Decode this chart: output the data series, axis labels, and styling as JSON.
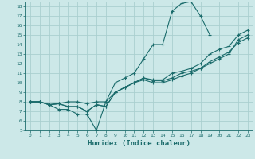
{
  "title": "",
  "xlabel": "Humidex (Indice chaleur)",
  "xlim": [
    -0.5,
    23.5
  ],
  "ylim": [
    5,
    18.5
  ],
  "xticks": [
    0,
    1,
    2,
    3,
    4,
    5,
    6,
    7,
    8,
    9,
    10,
    11,
    12,
    13,
    14,
    15,
    16,
    17,
    18,
    19,
    20,
    21,
    22,
    23
  ],
  "yticks": [
    5,
    6,
    7,
    8,
    9,
    10,
    11,
    12,
    13,
    14,
    15,
    16,
    17,
    18
  ],
  "bg_color": "#cce8e8",
  "grid_color": "#aacfcf",
  "line_color": "#1a6b6b",
  "lines": [
    {
      "x": [
        0,
        1,
        2,
        3,
        4,
        5,
        6,
        7,
        8,
        9,
        10,
        11,
        12,
        13,
        14,
        15,
        16,
        17,
        18,
        19
      ],
      "y": [
        8,
        8,
        7.7,
        7.2,
        7.2,
        6.7,
        6.7,
        5.0,
        8.0,
        10.0,
        10.5,
        11.0,
        12.5,
        14.0,
        14.0,
        17.5,
        18.3,
        18.5,
        17.0,
        15.0
      ]
    },
    {
      "x": [
        0,
        1,
        2,
        3,
        4,
        5,
        6,
        7,
        8,
        9,
        10,
        11,
        12,
        13,
        14,
        15,
        16,
        17,
        18,
        19,
        20,
        21,
        22,
        23
      ],
      "y": [
        8,
        8,
        7.7,
        7.8,
        7.5,
        7.5,
        7.0,
        7.7,
        7.5,
        9.0,
        9.5,
        10.0,
        10.5,
        10.2,
        10.2,
        10.5,
        11.0,
        11.2,
        11.5,
        12.2,
        12.7,
        13.2,
        14.2,
        14.7
      ]
    },
    {
      "x": [
        0,
        1,
        2,
        3,
        4,
        5,
        6,
        7,
        8,
        9,
        10,
        11,
        12,
        13,
        14,
        15,
        16,
        17,
        18,
        19,
        20,
        21,
        22,
        23
      ],
      "y": [
        8,
        8,
        7.7,
        7.8,
        7.5,
        7.5,
        7.0,
        7.7,
        7.5,
        9.0,
        9.5,
        10.0,
        10.3,
        10.0,
        10.0,
        10.3,
        10.7,
        11.0,
        11.5,
        12.0,
        12.5,
        13.0,
        14.5,
        15.0
      ]
    },
    {
      "x": [
        0,
        1,
        2,
        3,
        4,
        5,
        6,
        7,
        8,
        9,
        10,
        11,
        12,
        13,
        14,
        15,
        16,
        17,
        18,
        19,
        20,
        21,
        22,
        23
      ],
      "y": [
        8,
        8,
        7.7,
        7.8,
        8.0,
        8.0,
        7.8,
        8.0,
        8.0,
        9.0,
        9.5,
        10.0,
        10.5,
        10.3,
        10.3,
        11.0,
        11.2,
        11.5,
        12.0,
        13.0,
        13.5,
        13.8,
        15.0,
        15.5
      ]
    }
  ]
}
